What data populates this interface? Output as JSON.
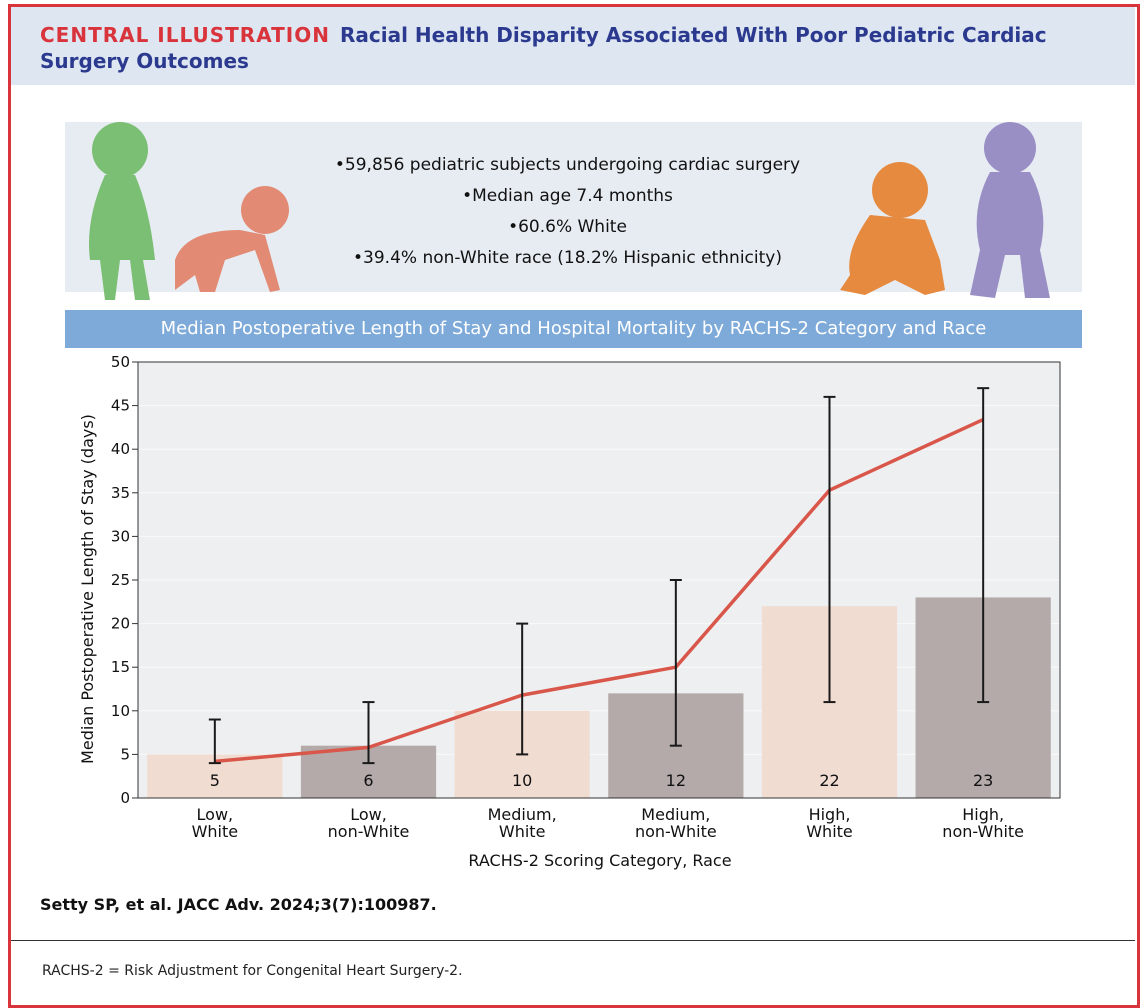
{
  "header": {
    "label": "CENTRAL ILLUSTRATION",
    "title": "Racial Health Disparity Associated With Poor Pediatric Cardiac Surgery Outcomes"
  },
  "summary": {
    "bullets": [
      "•59,856 pediatric subjects undergoing cardiac surgery",
      "•Median age 7.4 months",
      "•60.6% White",
      "•39.4% non-White race (18.2% Hispanic ethnicity)"
    ]
  },
  "chart_data": {
    "type": "bar",
    "title": "Median Postoperative Length of Stay and Hospital Mortality by RACHS-2 Category and Race",
    "ylabel": "Median Postoperative Length of Stay (days)",
    "xlabel": "RACHS-2 Scoring Category, Race",
    "categories": [
      "Low,\nWhite",
      "Low,\nnon-White",
      "Medium,\nWhite",
      "Medium,\nnon-White",
      "High,\nWhite",
      "High,\nnon-White"
    ],
    "values": [
      5,
      6,
      10,
      12,
      22,
      23
    ],
    "colors": [
      "#f1dcd1",
      "#b3aaa9",
      "#f1dcd1",
      "#b3aaa9",
      "#f1dcd1",
      "#b3aaa9"
    ],
    "error_low": [
      4,
      4,
      5,
      6,
      11,
      11
    ],
    "error_high": [
      9,
      11,
      20,
      25,
      46,
      47
    ],
    "error_color": "#1a1a1a",
    "line_values": [
      4.2,
      5.8,
      11.8,
      15.0,
      35.3,
      43.4
    ],
    "line_color": "#d9574a",
    "ylim": [
      0,
      50
    ],
    "yticks": [
      0,
      5,
      10,
      15,
      20,
      25,
      30,
      35,
      40,
      45,
      50
    ],
    "grid": true
  },
  "citation": "Setty SP, et al. JACC Adv. 2024;3(7):100987.",
  "footnote": "RACHS-2 = Risk Adjustment for Congenital Heart Surgery-2."
}
